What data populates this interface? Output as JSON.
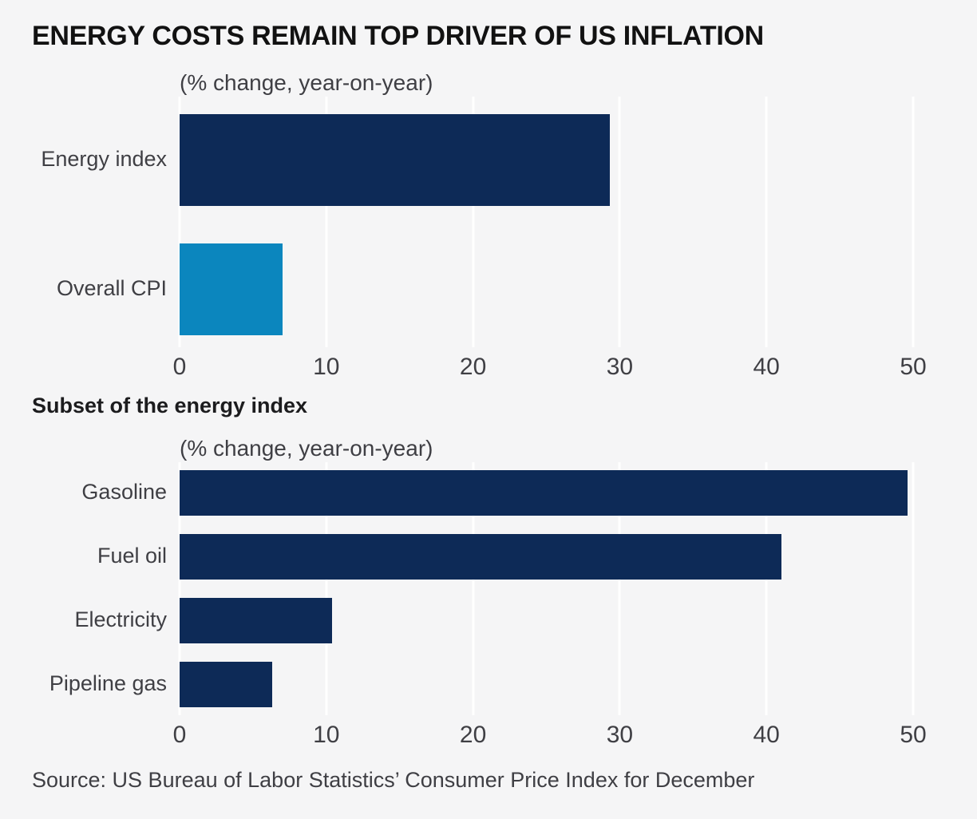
{
  "title": "ENERGY COSTS REMAIN TOP DRIVER OF US INFLATION",
  "source": "Source: US Bureau of Labor Statistics’ Consumer Price Index for December",
  "colors": {
    "navy": "#0d2a57",
    "blue": "#0b86be",
    "background": "#f5f5f6",
    "gridline": "#ffffff"
  },
  "chart_data": [
    {
      "type": "bar",
      "orientation": "horizontal",
      "title": "",
      "subtitle": "(% change, year-on-year)",
      "categories": [
        "Energy index",
        "Overall CPI"
      ],
      "values": [
        29.3,
        7.0
      ],
      "bar_colors": [
        "#0d2a57",
        "#0b86be"
      ],
      "xlabel": "",
      "ylabel": "",
      "xlim": [
        0,
        50
      ],
      "ticks": [
        0,
        10,
        20,
        30,
        40,
        50
      ],
      "grid": true,
      "legend": false
    },
    {
      "type": "bar",
      "orientation": "horizontal",
      "title": "Subset of the energy index",
      "subtitle": "(% change, year-on-year)",
      "categories": [
        "Gasoline",
        "Fuel oil",
        "Electricity",
        "Pipeline gas"
      ],
      "values": [
        49.6,
        41.0,
        10.4,
        6.3
      ],
      "bar_colors": [
        "#0d2a57",
        "#0d2a57",
        "#0d2a57",
        "#0d2a57"
      ],
      "xlabel": "",
      "ylabel": "",
      "xlim": [
        0,
        50
      ],
      "ticks": [
        0,
        10,
        20,
        30,
        40,
        50
      ],
      "grid": true,
      "legend": false
    }
  ]
}
